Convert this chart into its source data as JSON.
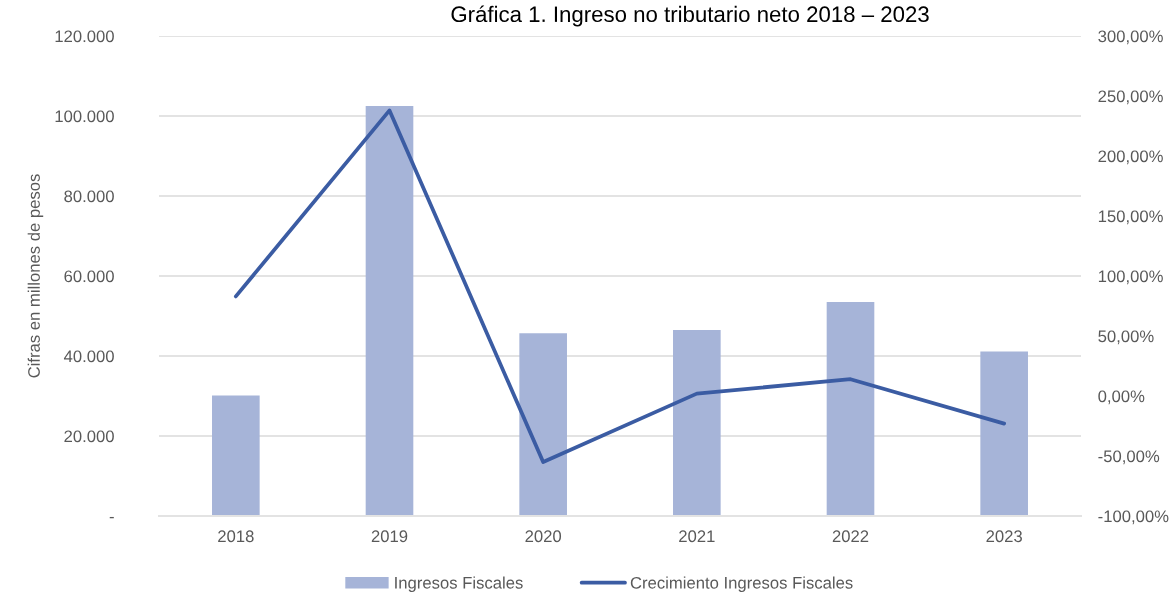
{
  "chart_data": {
    "type": "bar",
    "title": "Gráfica 1. Ingreso no tributario neto 2018 – 2023",
    "ylabel": "Cifras en millones de pesos",
    "categories": [
      "2018",
      "2019",
      "2020",
      "2021",
      "2022",
      "2023"
    ],
    "series": [
      {
        "name": "Ingresos Fiscales",
        "color": "#a6b4d8",
        "values": [
          30100,
          102500,
          45700,
          46500,
          53500,
          41100
        ]
      },
      {
        "name": "Crecimiento Ingresos Fiscales",
        "type": "line",
        "axis": "y2",
        "color": "#3b5ca3",
        "values": [
          83,
          238,
          -55,
          2,
          14,
          -23
        ]
      }
    ],
    "ylim": [
      0,
      120000
    ],
    "yticks": [
      {
        "value": 0,
        "label": "-"
      },
      {
        "value": 20000,
        "label": "20.000"
      },
      {
        "value": 40000,
        "label": "40.000"
      },
      {
        "value": 60000,
        "label": "60.000"
      },
      {
        "value": 80000,
        "label": "80.000"
      },
      {
        "value": 100000,
        "label": "100.000"
      },
      {
        "value": 120000,
        "label": "120.000"
      }
    ],
    "y2lim": [
      -100,
      300
    ],
    "y2ticks": [
      {
        "value": -100,
        "label": "-100,00%"
      },
      {
        "value": -50,
        "label": "-50,00%"
      },
      {
        "value": 0,
        "label": "0,00%"
      },
      {
        "value": 50,
        "label": "50,00%"
      },
      {
        "value": 100,
        "label": "100,00%"
      },
      {
        "value": 150,
        "label": "150,00%"
      },
      {
        "value": 200,
        "label": "200,00%"
      },
      {
        "value": 250,
        "label": "250,00%"
      },
      {
        "value": 300,
        "label": "300,00%"
      }
    ],
    "grid": "y",
    "legend": "bottom"
  }
}
